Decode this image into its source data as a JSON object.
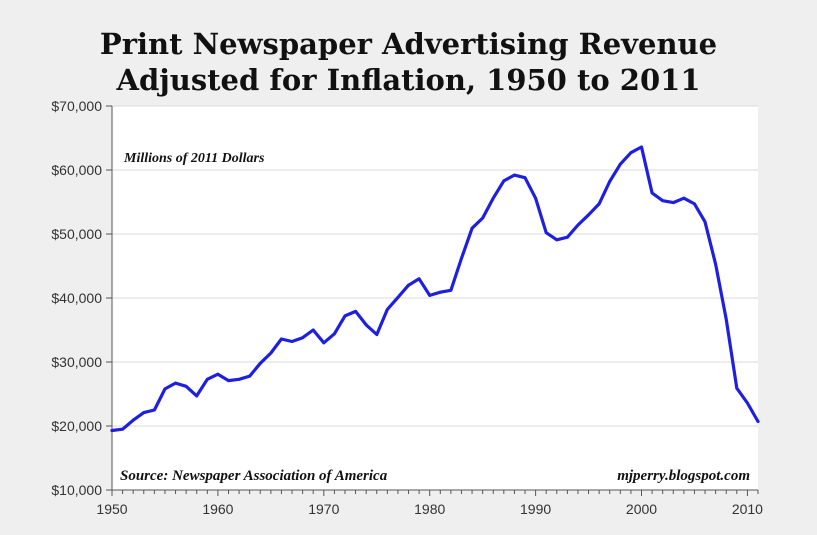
{
  "chart_data": {
    "type": "line",
    "title": "Print Newspaper Advertising Revenue",
    "subtitle": "Adjusted for Inflation, 1950 to 2011",
    "xlabel": "",
    "ylabel": "",
    "units_note": "Millions of 2011 Dollars",
    "source_note": "Source: Newspaper Association of America",
    "credit_note": "mjperry.blogspot.com",
    "xlim": [
      1950,
      2011
    ],
    "ylim": [
      10000,
      70000
    ],
    "x_ticks": [
      1950,
      1960,
      1970,
      1980,
      1990,
      2000,
      2010
    ],
    "x_tick_labels": [
      "1950",
      "1960",
      "1970",
      "1980",
      "1990",
      "2000",
      "2010"
    ],
    "y_ticks": [
      10000,
      20000,
      30000,
      40000,
      50000,
      60000,
      70000
    ],
    "y_tick_labels": [
      "$10,000",
      "$20,000",
      "$30,000",
      "$40,000",
      "$50,000",
      "$60,000",
      "$70,000"
    ],
    "grid": true,
    "legend": "none",
    "line_color": "#1f1fe0",
    "series": [
      {
        "x": [
          1950,
          1951,
          1952,
          1953,
          1954,
          1955,
          1956,
          1957,
          1958,
          1959,
          1960,
          1961,
          1962,
          1963,
          1964,
          1965,
          1966,
          1967,
          1968,
          1969,
          1970,
          1971,
          1972,
          1973,
          1974,
          1975,
          1976,
          1977,
          1978,
          1979,
          1980,
          1981,
          1982,
          1983,
          1984,
          1985,
          1986,
          1987,
          1988,
          1989,
          1990,
          1991,
          1992,
          1993,
          1994,
          1995,
          1996,
          1997,
          1998,
          1999,
          2000,
          2001,
          2002,
          2003,
          2004,
          2005,
          2006,
          2007,
          2008,
          2009,
          2010,
          2011
        ],
        "values": [
          19300,
          19500,
          20900,
          22100,
          22500,
          25800,
          26700,
          26200,
          24700,
          27300,
          28100,
          27100,
          27300,
          27800,
          29800,
          31400,
          33600,
          33200,
          33800,
          35000,
          33000,
          34400,
          37200,
          37900,
          35800,
          34300,
          38200,
          40100,
          42000,
          43000,
          40400,
          40900,
          41200,
          46200,
          50900,
          52500,
          55600,
          58300,
          59200,
          58800,
          55600,
          50200,
          49100,
          49500,
          51400,
          53000,
          54700,
          58200,
          60900,
          62700,
          63600,
          56400,
          55200,
          54900,
          55600,
          54700,
          51900,
          45300,
          36700,
          25900,
          23600,
          20700
        ]
      }
    ]
  }
}
